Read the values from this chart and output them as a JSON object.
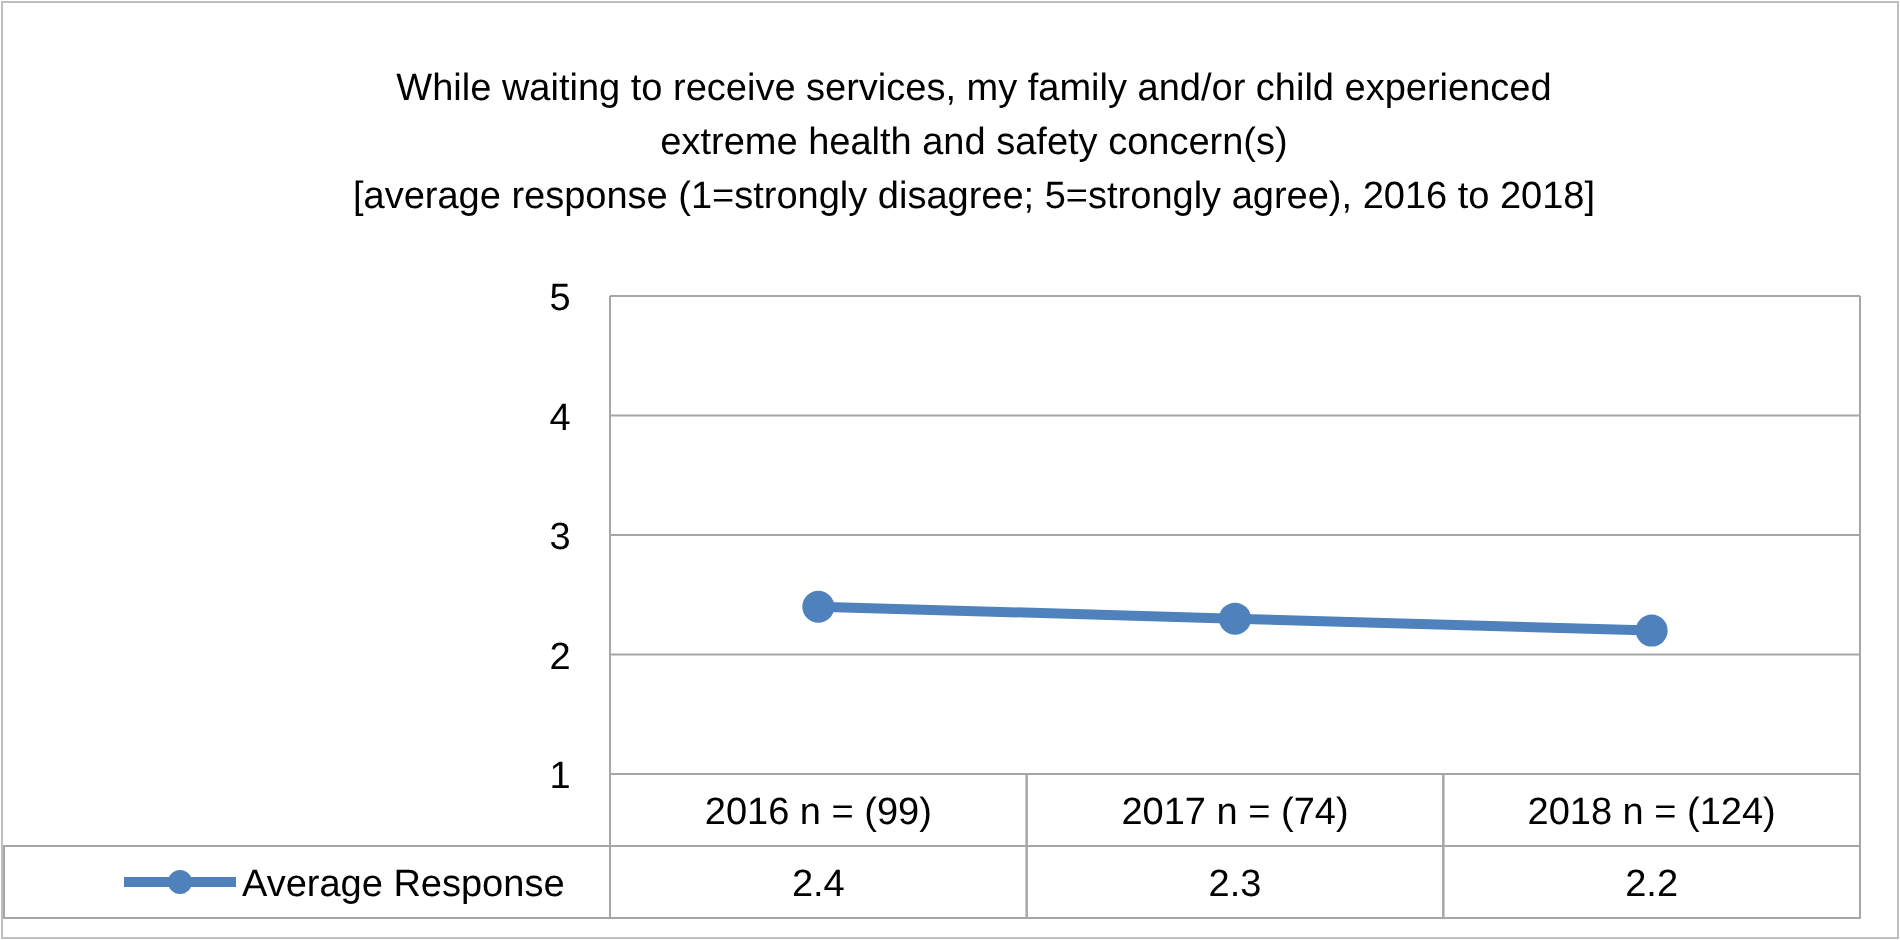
{
  "chart_data": {
    "type": "line",
    "title": "While waiting to receive services, my family and/or child experienced\nextreme health and safety concern(s)",
    "subtitle": "[average response (1=strongly disagree; 5=strongly agree), 2016 to 2018]",
    "categories": [
      "2016  n = (99)",
      "2017  n = (74)",
      "2018  n = (124)"
    ],
    "series": [
      {
        "name": "Average Response",
        "color": "#4f81bd",
        "values": [
          2.4,
          2.3,
          2.2
        ]
      }
    ],
    "ylim": [
      1,
      5
    ],
    "yticks": [
      1,
      2,
      3,
      4,
      5
    ],
    "grid": "y",
    "legend": "bottom",
    "marker": "circle",
    "line_style": "solid",
    "data_labels": true
  }
}
